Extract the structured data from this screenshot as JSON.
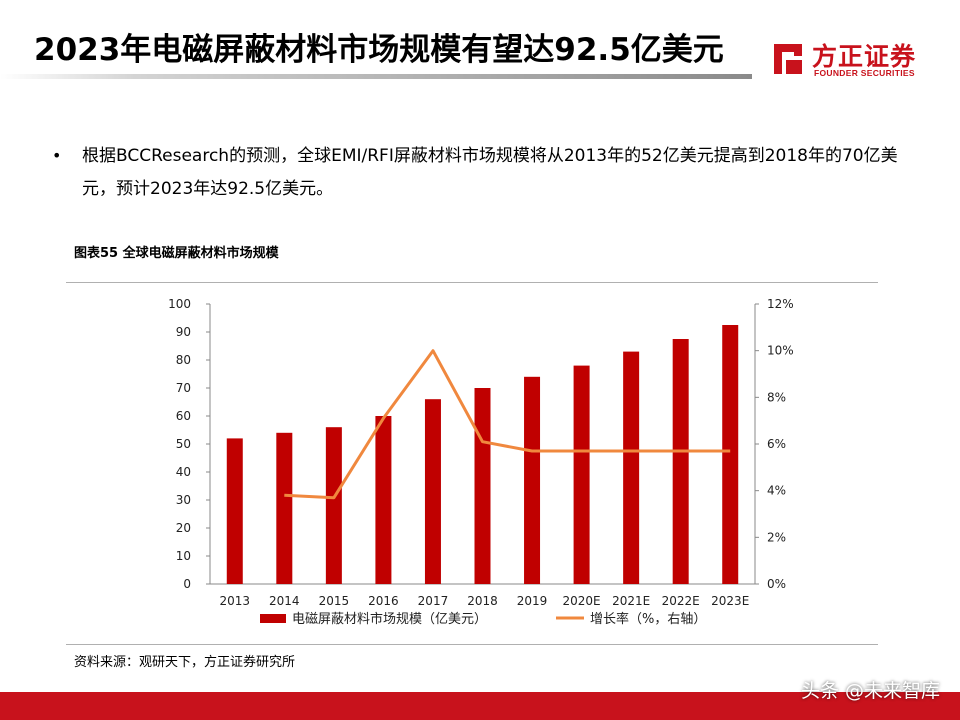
{
  "header": {
    "title": "2023年电磁屏蔽材料市场规模有望达92.5亿美元",
    "logo_name": "方正证券",
    "logo_sub": "FOUNDER SECURITIES"
  },
  "body_text": {
    "bullet": "•",
    "paragraph": "根据BCCResearch的预测，全球EMI/RFI屏蔽材料市场规模将从2013年的52亿美元提高到2018年的70亿美元，预计2023年达92.5亿美元。"
  },
  "chart_title": "图表55 全球电磁屏蔽材料市场规模",
  "chart_data": {
    "type": "bar",
    "categories": [
      "2013",
      "2014",
      "2015",
      "2016",
      "2017",
      "2018",
      "2019",
      "2020E",
      "2021E",
      "2022E",
      "2023E"
    ],
    "series": [
      {
        "name": "电磁屏蔽材料市场规模（亿美元）",
        "type": "bar",
        "axis": "left",
        "color": "#c00000",
        "values": [
          52,
          54,
          56,
          60,
          66,
          70,
          74,
          78,
          83,
          87.5,
          92.5
        ]
      },
      {
        "name": "增长率（%，右轴）",
        "type": "line",
        "axis": "right",
        "color": "#f0883e",
        "values": [
          null,
          3.8,
          3.7,
          7.1,
          10.0,
          6.1,
          5.7,
          5.7,
          5.7,
          5.7,
          5.7
        ]
      }
    ],
    "y_left": {
      "min": 0,
      "max": 100,
      "ticks": [
        0,
        10,
        20,
        30,
        40,
        50,
        60,
        70,
        80,
        90,
        100
      ]
    },
    "y_right": {
      "min": 0,
      "max": 12,
      "ticks": [
        "0%",
        "2%",
        "4%",
        "6%",
        "8%",
        "10%",
        "12%"
      ]
    },
    "grid": false,
    "legend_position": "bottom"
  },
  "source": "资料来源：观研天下，方正证券研究所",
  "watermark": "头条 @未来智库"
}
